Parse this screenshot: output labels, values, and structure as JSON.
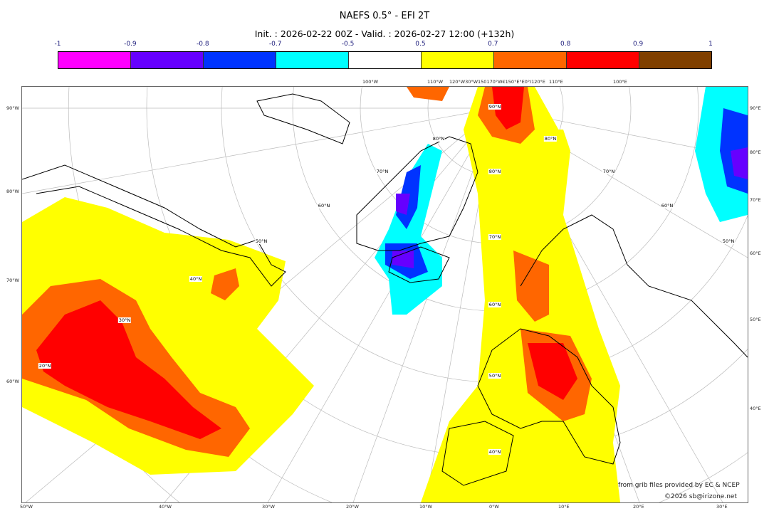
{
  "title": "NAEFS 0.5° - EFI 2T",
  "subtitle": "Init. : 2026-02-22 00Z - Valid. : 2026-02-27 12:00 (+132h)",
  "colorbar": {
    "ticks": [
      "-1",
      "-0.9",
      "-0.8",
      "-0.7",
      "-0.5",
      "0.5",
      "0.7",
      "0.8",
      "0.9",
      "1"
    ],
    "colors": [
      "#ff00ff",
      "#6600ff",
      "#0033ff",
      "#00ffff",
      "#ffffff",
      "#ffff00",
      "#ff6600",
      "#ff0000",
      "#804000"
    ]
  },
  "axes": {
    "left": [
      "90°W",
      "80°W",
      "70°W",
      "60°W"
    ],
    "right": [
      "90°E",
      "80°E",
      "70°E",
      "60°E",
      "50°E",
      "40°E"
    ],
    "bottom": [
      "50°W",
      "40°W",
      "30°W",
      "20°W",
      "10°W",
      "0°W",
      "10°E",
      "20°E",
      "30°E"
    ],
    "top": [
      "100°W",
      "110°W",
      "120°W30°W150170°W€150°E°E0°I120°E",
      "110°E",
      "100°E"
    ]
  },
  "lat_labels": [
    "90°N",
    "80°N",
    "70°N",
    "60°N",
    "50°N",
    "40°N",
    "30°N",
    "20°N",
    "40°N",
    "50°N",
    "60°N",
    "70°N",
    "80°N",
    "80°N",
    "70°N",
    "60°N",
    "50°N"
  ],
  "footer": {
    "source": "from grib files provided by EC & NCEP",
    "copyright": "©2026 sb@irizone.net"
  }
}
